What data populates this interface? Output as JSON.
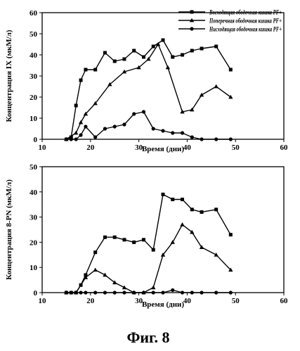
{
  "figure_caption": "Фиг. 8",
  "chart_data": [
    {
      "type": "line",
      "title": "",
      "xlabel": "Время (дни)",
      "ylabel": "Концентрация IX (мкМ/л)",
      "xlim": [
        10,
        60
      ],
      "ylim": [
        0,
        60
      ],
      "x_ticks": [
        10,
        20,
        30,
        40,
        50,
        60
      ],
      "y_ticks": [
        0,
        10,
        20,
        30,
        40,
        50,
        60
      ],
      "grid": false,
      "legend": "top-right",
      "series": [
        {
          "name": "Восходящая ободочная кишка PF+",
          "marker": "square",
          "x": [
            15,
            16,
            17,
            18,
            19,
            21,
            23,
            25,
            27,
            29,
            31,
            33,
            35,
            37,
            39,
            41,
            43,
            46,
            49
          ],
          "y": [
            0,
            1,
            16,
            28,
            33,
            33,
            41,
            37,
            38,
            42,
            39,
            44,
            47,
            39,
            40,
            42,
            43,
            44,
            33
          ]
        },
        {
          "name": "Поперечная ободочная кишка PF+",
          "marker": "triangle",
          "x": [
            15,
            17,
            18,
            19,
            21,
            24,
            27,
            30,
            32,
            34,
            36,
            39,
            41,
            43,
            46,
            49
          ],
          "y": [
            0,
            3,
            8,
            12,
            17,
            26,
            32,
            34,
            38,
            45,
            34,
            13,
            14,
            21,
            25,
            20
          ]
        },
        {
          "name": "Нисходящая ободочная кишка PF+",
          "marker": "circle",
          "x": [
            15,
            16,
            17,
            18,
            19,
            21,
            23,
            25,
            27,
            29,
            31,
            33,
            35,
            37,
            39,
            41,
            43,
            46,
            49
          ],
          "y": [
            0,
            0,
            0,
            2,
            6,
            1,
            5,
            6,
            7,
            12,
            13,
            5,
            4,
            3,
            3,
            1,
            0,
            0,
            0
          ]
        }
      ]
    },
    {
      "type": "line",
      "title": "",
      "xlabel": "Время (дни)",
      "ylabel": "Концентрация 8-PN (мкМ/л)",
      "xlim": [
        10,
        60
      ],
      "ylim": [
        0,
        50
      ],
      "x_ticks": [
        10,
        20,
        30,
        40,
        50,
        60
      ],
      "y_ticks": [
        0,
        10,
        20,
        30,
        40,
        50
      ],
      "grid": false,
      "legend": "none",
      "series": [
        {
          "marker": "square",
          "x": [
            15,
            16,
            17,
            18,
            19,
            21,
            23,
            25,
            27,
            29,
            31,
            33,
            35,
            37,
            39,
            41,
            43,
            46,
            49
          ],
          "y": [
            0,
            0,
            0,
            3,
            7,
            16,
            22,
            22,
            21,
            20,
            21,
            17,
            39,
            37,
            37,
            33,
            32,
            33,
            23
          ]
        },
        {
          "marker": "triangle",
          "x": [
            15,
            17,
            19,
            21,
            23,
            25,
            27,
            29,
            31,
            33,
            35,
            37,
            39,
            41,
            43,
            46,
            49
          ],
          "y": [
            0,
            0,
            6,
            9,
            7,
            4,
            2,
            0,
            0,
            2,
            15,
            20,
            27,
            24,
            18,
            15,
            9
          ]
        },
        {
          "marker": "circle",
          "x": [
            15,
            16,
            17,
            18,
            19,
            21,
            23,
            25,
            27,
            29,
            31,
            33,
            35,
            37,
            39,
            41,
            43,
            46,
            49
          ],
          "y": [
            0,
            0,
            0,
            0,
            0,
            0,
            0,
            0,
            0,
            0,
            0,
            0,
            0,
            1,
            0,
            0,
            0,
            0,
            0
          ]
        }
      ]
    }
  ]
}
